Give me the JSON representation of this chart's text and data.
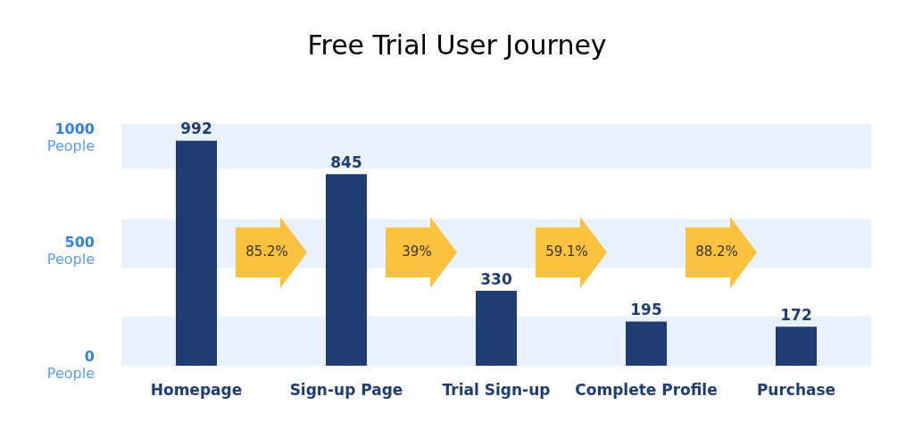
{
  "chart_data": {
    "type": "bar",
    "title": "Free Trial User Journey",
    "categories": [
      "Homepage",
      "Sign-up Page",
      "Trial Sign-up",
      "Complete Profile",
      "Purchase"
    ],
    "values": [
      992,
      845,
      330,
      195,
      172
    ],
    "color": "#1f3d73",
    "data_labels": true,
    "ylim": [
      0,
      1070
    ],
    "yticks": [
      {
        "value": 0,
        "label": "0 People"
      },
      {
        "value": 500,
        "label": "500 People"
      },
      {
        "value": 1000,
        "label": "1000 People"
      }
    ],
    "bands": [
      {
        "axis": "y",
        "from": 0,
        "to": 216,
        "color": "#e9f1fd"
      },
      {
        "axis": "y",
        "from": 433,
        "to": 646,
        "color": "#e9f1fd"
      },
      {
        "axis": "y",
        "from": 869,
        "to": 1067,
        "color": "#e9f1fd"
      }
    ],
    "annotations": [
      "85.2%",
      "39%",
      "59.1%",
      "88.2%"
    ]
  }
}
